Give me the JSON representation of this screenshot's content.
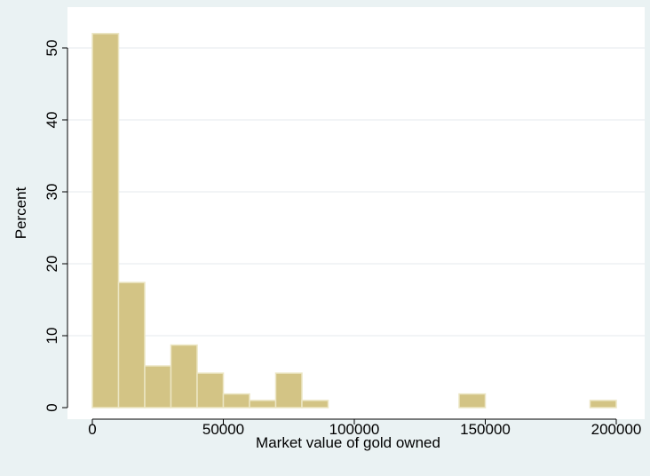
{
  "colors": {
    "outer_background": "#eaf2f3",
    "plot_background": "#ffffff",
    "bar_fill": "#d3c485",
    "bar_stroke": "#ece6c4",
    "gridline": "#e9eef0",
    "axis": "#000000"
  },
  "chart_data": {
    "type": "bar",
    "subtype": "histogram",
    "title": "",
    "xlabel": "Market value of gold owned",
    "ylabel": "Percent",
    "xlim": [
      -10000,
      205000
    ],
    "ylim": [
      0,
      53
    ],
    "grid": true,
    "x_ticks": [
      0,
      50000,
      100000,
      150000,
      200000
    ],
    "x_tick_labels": [
      "0",
      "50000",
      "100000",
      "150000",
      "200000"
    ],
    "y_ticks": [
      0,
      10,
      20,
      30,
      40,
      50
    ],
    "y_tick_labels": [
      "0",
      "10",
      "20",
      "30",
      "40",
      "50"
    ],
    "bin_width": 10000,
    "bins": [
      {
        "x0": 0,
        "x1": 10000,
        "value": 52
      },
      {
        "x0": 10000,
        "x1": 20000,
        "value": 17.4
      },
      {
        "x0": 20000,
        "x1": 30000,
        "value": 5.8
      },
      {
        "x0": 30000,
        "x1": 40000,
        "value": 8.7
      },
      {
        "x0": 40000,
        "x1": 50000,
        "value": 4.8
      },
      {
        "x0": 50000,
        "x1": 60000,
        "value": 1.9
      },
      {
        "x0": 60000,
        "x1": 70000,
        "value": 1
      },
      {
        "x0": 70000,
        "x1": 80000,
        "value": 4.8
      },
      {
        "x0": 80000,
        "x1": 90000,
        "value": 1
      },
      {
        "x0": 140000,
        "x1": 150000,
        "value": 1.9
      },
      {
        "x0": 190000,
        "x1": 200000,
        "value": 1
      }
    ]
  }
}
